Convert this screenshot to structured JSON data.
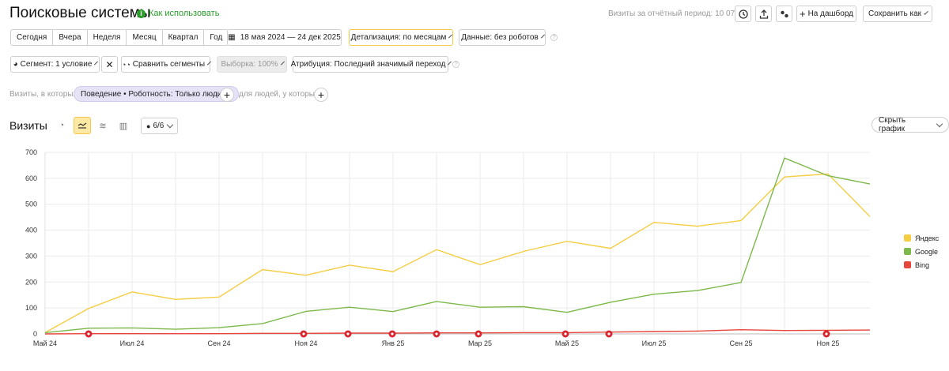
{
  "header": {
    "title": "Поисковые системы",
    "how_to": "Как использовать",
    "visits_total": "Визиты за отчётный период: 10 070",
    "to_dashboard": "На дашборд",
    "save_as": "Сохранить как"
  },
  "periods": [
    "Сегодня",
    "Вчера",
    "Неделя",
    "Месяц",
    "Квартал",
    "Год"
  ],
  "toolbar": {
    "date_range": "18 мая 2024 — 24 дек 2025",
    "detail": "Детализация: по месяцам",
    "data": "Данные: без роботов",
    "segment": "Сегмент: 1 условие",
    "compare": "Сравнить сегменты",
    "sample": "Выборка: 100%",
    "attribution": "Атрибуция: Последний значимый переход"
  },
  "filters": {
    "visits_where": "Визиты, в которых",
    "chip": "Поведение • Роботность: Только люди",
    "people_where": "для людей, у которых"
  },
  "chart_header": {
    "title": "Визиты",
    "series_count": "6/6",
    "hide_graph": "Скрыть график"
  },
  "colors": {
    "yandex": "#f5cd42",
    "google": "#7db84a",
    "bing": "#e8453c",
    "accent": "#f2c94c"
  },
  "chart_data": {
    "type": "line",
    "x_labels": [
      "Май 24",
      "Июл 24",
      "Сен 24",
      "Ноя 24",
      "Янв 25",
      "Мар 25",
      "Май 25",
      "Июл 25",
      "Сен 25",
      "Ноя 25"
    ],
    "y_ticks": [
      0,
      100,
      200,
      300,
      400,
      500,
      600,
      700
    ],
    "ylim": [
      0,
      700
    ],
    "series": [
      {
        "name": "Яндекс",
        "values": [
          5,
          98,
          162,
          133,
          142,
          248,
          226,
          265,
          240,
          325,
          267,
          318,
          357,
          330,
          430,
          415,
          437,
          605,
          617,
          453
        ]
      },
      {
        "name": "Google",
        "values": [
          5,
          22,
          23,
          18,
          24,
          40,
          87,
          103,
          86,
          125,
          103,
          105,
          83,
          122,
          153,
          167,
          198,
          678,
          610,
          578
        ]
      },
      {
        "name": "Bing",
        "values": [
          0,
          1,
          1,
          1,
          1,
          2,
          2,
          3,
          3,
          4,
          4,
          5,
          5,
          7,
          9,
          11,
          16,
          13,
          14,
          15
        ]
      }
    ],
    "legend": "right"
  }
}
